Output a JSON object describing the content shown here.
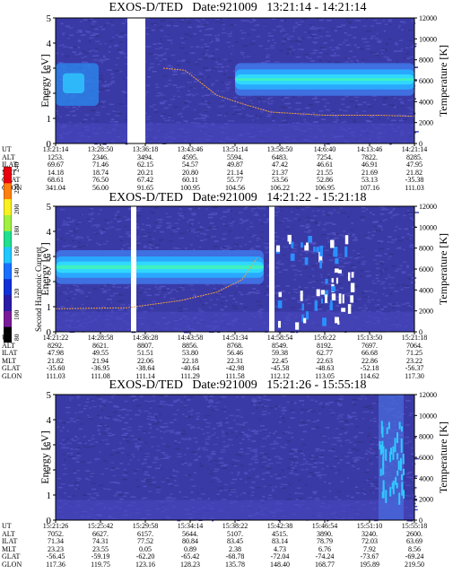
{
  "colorbar": {
    "label": "Second Harmonic Current",
    "ticks": [
      "80",
      "100",
      "120",
      "140",
      "160",
      "180",
      "200",
      "220",
      "240"
    ],
    "colors": [
      "#000000",
      "#7a1a9a",
      "#2a1aa8",
      "#1030d8",
      "#1a70ff",
      "#20c8ff",
      "#20e090",
      "#a0f040",
      "#f8f020",
      "#ff8010",
      "#e80010"
    ]
  },
  "chart_data": [
    {
      "type": "heatmap",
      "title": "EXOS-D/TED   Date:921009   13:21:14 - 14:21:14",
      "ylabel": "Energy [eV]",
      "y2label": "Temperature [K]",
      "ylim": [
        0,
        5
      ],
      "y2lim": [
        0,
        12000
      ],
      "yticks": [
        "0",
        "1",
        "2",
        "3",
        "4",
        "5"
      ],
      "y2ticks": [
        "0",
        "2000",
        "4000",
        "6000",
        "8000",
        "10000",
        "12000"
      ],
      "ephemeris": {
        "labels": [
          "UT",
          "ALT",
          "ILAT",
          "MLT",
          "GLAT",
          "GLON"
        ],
        "columns": [
          [
            "13:21:14",
            "1253.",
            "69.67",
            "14.18",
            "68.61",
            "341.04"
          ],
          [
            "13:28:50",
            "2346.",
            "71.46",
            "18.74",
            "76.50",
            "56.00"
          ],
          [
            "13:36:18",
            "3494.",
            "62.15",
            "20.21",
            "67.42",
            "91.65"
          ],
          [
            "13:43:46",
            "4595.",
            "54.57",
            "20.80",
            "60.11",
            "100.95"
          ],
          [
            "13:51:14",
            "5594.",
            "49.87",
            "21.14",
            "55.77",
            "104.56"
          ],
          [
            "13:58:50",
            "6483.",
            "47.42",
            "21.37",
            "53.56",
            "106.22"
          ],
          [
            "14:6:40",
            "7254.",
            "46.61",
            "21.55",
            "52.86",
            "106.95"
          ],
          [
            "14:13:46",
            "7822.",
            "46.91",
            "21.69",
            "53.13",
            "107.16"
          ],
          [
            "14:21:14",
            "8285.",
            "47.95",
            "21.82",
            "-35.38",
            "111.03"
          ]
        ]
      },
      "band": {
        "start": 0.5,
        "end": 1.0,
        "low": 2.15,
        "high": 2.95
      },
      "gaps": [
        [
          0.2,
          0.25
        ]
      ],
      "temperature": [
        [
          0.3,
          7200
        ],
        [
          0.36,
          7000
        ],
        [
          0.45,
          4600
        ],
        [
          0.52,
          3800
        ],
        [
          0.6,
          3000
        ],
        [
          0.75,
          2700
        ],
        [
          0.9,
          2700
        ],
        [
          1.0,
          2600
        ]
      ]
    },
    {
      "type": "heatmap",
      "title": "EXOS-D/TED   Date:921009   14:21:22 - 15:21:18",
      "ylabel": "Energy [eV]",
      "y2label": "Temperature [K]",
      "ylim": [
        0,
        5
      ],
      "y2lim": [
        0,
        12000
      ],
      "yticks": [
        "0",
        "1",
        "2",
        "3",
        "4",
        "5"
      ],
      "y2ticks": [
        "0",
        "2000",
        "4000",
        "6000",
        "8000",
        "10000",
        "12000"
      ],
      "ephemeris": {
        "labels": [
          "UT",
          "ALT",
          "ILAT",
          "MLT",
          "GLAT",
          "GLON"
        ],
        "columns": [
          [
            "14:21:22",
            "8292.",
            "47.98",
            "21.82",
            "-35.60",
            "111.03"
          ],
          [
            "14:28:58",
            "8621.",
            "49.55",
            "21.94",
            "-36.95",
            "111.08"
          ],
          [
            "14:36:28",
            "8807.",
            "51.51",
            "22.06",
            "-38.64",
            "111.14"
          ],
          [
            "14:43:58",
            "8856.",
            "53.80",
            "22.18",
            "-40.64",
            "111.29"
          ],
          [
            "14:51:34",
            "8768.",
            "56.46",
            "22.31",
            "-42.98",
            "111.58"
          ],
          [
            "14:58:54",
            "8549.",
            "59.38",
            "22.45",
            "-45.58",
            "112.12"
          ],
          [
            "15:6:22",
            "8192.",
            "62.77",
            "22.63",
            "-48.63",
            "113.05"
          ],
          [
            "15:13:50",
            "7697.",
            "66.68",
            "22.86",
            "-52.18",
            "114.62"
          ],
          [
            "15:21:18",
            "7064.",
            "71.25",
            "23.22",
            "-56.37",
            "117.30"
          ]
        ]
      },
      "band": {
        "start": 0.0,
        "end": 0.58,
        "low": 2.15,
        "high": 3.0
      },
      "gaps": [
        [
          0.21,
          0.225
        ],
        [
          0.595,
          0.61
        ]
      ],
      "temperature": [
        [
          0.0,
          2200
        ],
        [
          0.2,
          2300
        ],
        [
          0.35,
          3000
        ],
        [
          0.45,
          3800
        ],
        [
          0.52,
          5000
        ],
        [
          0.56,
          7000
        ]
      ]
    },
    {
      "type": "heatmap",
      "title": "EXOS-D/TED   Date:921009   15:21:26 - 15:55:18",
      "ylabel": "Energy [eV]",
      "y2label": "Temperature [K]",
      "ylim": [
        0,
        5
      ],
      "y2lim": [
        0,
        12000
      ],
      "yticks": [
        "0",
        "1",
        "2",
        "3",
        "4",
        "5"
      ],
      "y2ticks": [
        "0",
        "2000",
        "4000",
        "6000",
        "8000",
        "10000",
        "12000"
      ],
      "ephemeris": {
        "labels": [
          "UT",
          "ALT",
          "ILAT",
          "MLT",
          "GLAT",
          "GLON"
        ],
        "columns": [
          [
            "15:21:26",
            "7052.",
            "71.34",
            "23.23",
            "-56.45",
            "117.36"
          ],
          [
            "15:25:42",
            "6627.",
            "74.31",
            "23.55",
            "-59.19",
            "119.75"
          ],
          [
            "15:29:58",
            "6157.",
            "77.52",
            "0.05",
            "-62.20",
            "123.16"
          ],
          [
            "15:34:14",
            "5644.",
            "80.84",
            "0.89",
            "-65.42",
            "128.23"
          ],
          [
            "15:38:22",
            "5107.",
            "83.45",
            "2.38",
            "-68.78",
            "135.78"
          ],
          [
            "15:42:38",
            "4515.",
            "83.14",
            "4.73",
            "-72.04",
            "148.40"
          ],
          [
            "15:46:54",
            "3890.",
            "78.79",
            "6.76",
            "-74.24",
            "168.77"
          ],
          [
            "15:51:10",
            "3240.",
            "72.03",
            "7.92",
            "-73.67",
            "195.89"
          ],
          [
            "15:55:18",
            "2600.",
            "63.69",
            "8.56",
            "-69.24",
            "219.50"
          ]
        ]
      },
      "band": null,
      "gaps": [],
      "temperature": []
    }
  ]
}
